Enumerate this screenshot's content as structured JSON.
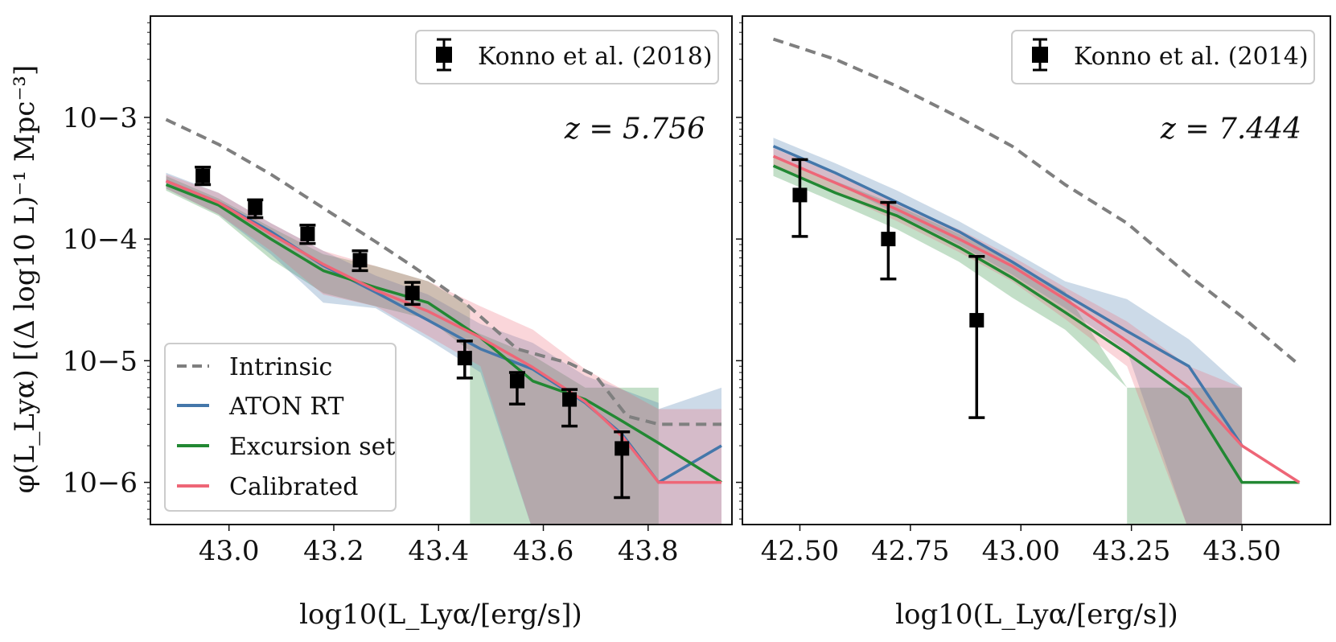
{
  "figure": {
    "ylabel": "φ(L_Lyα) [(Δ log10 L)⁻¹ Mpc⁻³]",
    "colors": {
      "intrinsic": "#7f7f7f",
      "aton": "#4477aa",
      "excursion": "#228833",
      "calibrated": "#ee6677",
      "observed": "#000000"
    }
  },
  "chart_data": [
    {
      "type": "line",
      "title": "",
      "xlabel": "log10(L_Lyα/[erg/s])",
      "ylabel": "φ(L_Lyα) [(Δ log10 L)⁻¹ Mpc⁻³]",
      "yscale": "log",
      "xlim": [
        42.85,
        43.96
      ],
      "ylim": [
        4.5e-07,
        0.0068
      ],
      "xticks": [
        43.0,
        43.2,
        43.4,
        43.6,
        43.8
      ],
      "xtick_labels": [
        "43.0",
        "43.2",
        "43.4",
        "43.6",
        "43.8"
      ],
      "yticks": [
        1e-06,
        1e-05,
        0.0001,
        0.001
      ],
      "ytick_labels": [
        "10−6",
        "10−5",
        "10−4",
        "10−3"
      ],
      "annotation": "z = 5.756",
      "legend_observed": "Konno et al. (2018)",
      "legend_position": "top-right",
      "series": [
        {
          "name": "Intrinsic",
          "style": "dashed",
          "color_key": "intrinsic",
          "x": [
            42.88,
            42.98,
            43.08,
            43.18,
            43.28,
            43.35,
            43.45,
            43.55,
            43.65,
            43.7,
            43.76,
            43.82,
            43.94
          ],
          "y": [
            0.00096,
            0.0006,
            0.00034,
            0.00018,
            9.5e-05,
            6e-05,
            3e-05,
            1.25e-05,
            9.5e-06,
            7.5e-06,
            3.5e-06,
            3e-06,
            3e-06
          ]
        },
        {
          "name": "ATON RT",
          "style": "solid",
          "color_key": "aton",
          "x": [
            42.88,
            42.98,
            43.08,
            43.18,
            43.28,
            43.38,
            43.48,
            43.58,
            43.68,
            43.75,
            43.82,
            43.94
          ],
          "y": [
            0.0003,
            0.0002,
            0.000115,
            6.05e-05,
            3.65e-05,
            2.15e-05,
            1.25e-05,
            8.5e-06,
            4.5e-06,
            2.5e-06,
            1e-06,
            2e-06
          ]
        },
        {
          "name": "Excursion set",
          "style": "solid",
          "color_key": "excursion",
          "x": [
            42.88,
            42.98,
            43.08,
            43.18,
            43.28,
            43.38,
            43.48,
            43.58,
            43.68,
            43.75,
            43.82,
            43.94
          ],
          "y": [
            0.00028,
            0.00019,
            0.0001,
            5.5e-05,
            4e-05,
            3e-05,
            1.55e-05,
            6.8e-06,
            4.8e-06,
            3.2e-06,
            2.1e-06,
            1e-06
          ]
        },
        {
          "name": "Calibrated",
          "style": "solid",
          "color_key": "calibrated",
          "x": [
            42.88,
            42.98,
            43.08,
            43.18,
            43.28,
            43.38,
            43.48,
            43.58,
            43.68,
            43.75,
            43.82,
            43.94
          ],
          "y": [
            0.0003,
            0.0002,
            0.00011,
            6.2e-05,
            3.8e-05,
            2.55e-05,
            1.55e-05,
            8.8e-06,
            4.6e-06,
            2.4e-06,
            1e-06,
            1e-06
          ]
        }
      ],
      "bands": [
        {
          "name": "Excursion set band",
          "color_key": "excursion",
          "x": [
            42.88,
            42.98,
            43.08,
            43.18,
            43.28,
            43.38,
            43.46,
            43.46,
            43.58,
            43.68,
            43.82,
            43.82
          ],
          "upper": [
            0.00033,
            0.000215,
            0.000125,
            7.5e-05,
            6e-05,
            4.5e-05,
            2.8e-05,
            1.8e-05,
            1.1e-05,
            6e-06,
            6e-06,
            6e-06
          ],
          "lower": [
            0.00025,
            0.000155,
            6.8e-05,
            3.6e-05,
            2.8e-05,
            2.2e-05,
            1.2e-05,
            4e-07,
            4e-07,
            4e-07,
            4e-07,
            4e-07
          ]
        },
        {
          "name": "ATON RT band",
          "color_key": "aton",
          "x": [
            42.88,
            42.98,
            43.08,
            43.18,
            43.28,
            43.38,
            43.48,
            43.58,
            43.68,
            43.82,
            43.82,
            43.94
          ],
          "upper": [
            0.00035,
            0.00024,
            0.000135,
            8e-05,
            5e-05,
            3.5e-05,
            2e-05,
            1.4e-05,
            7.5e-06,
            4.5e-06,
            4e-06,
            6e-06
          ],
          "lower": [
            0.00026,
            0.00016,
            7.5e-05,
            3e-05,
            2.7e-05,
            1.5e-05,
            8e-06,
            4e-07,
            4e-07,
            4e-07,
            4e-07,
            4e-07
          ]
        },
        {
          "name": "Calibrated band",
          "color_key": "calibrated",
          "x": [
            42.88,
            42.98,
            43.08,
            43.18,
            43.28,
            43.38,
            43.48,
            43.58,
            43.68,
            43.82,
            43.82,
            43.94
          ],
          "upper": [
            0.00034,
            0.00024,
            0.000135,
            8e-05,
            6e-05,
            4.5e-05,
            2.8e-05,
            1.8e-05,
            8.5e-06,
            4e-06,
            4e-06,
            4e-06
          ],
          "lower": [
            0.00026,
            0.00016,
            8e-05,
            3.5e-05,
            2.8e-05,
            1.6e-05,
            9e-06,
            4e-07,
            4e-07,
            4e-07,
            4e-07,
            4e-07
          ]
        }
      ],
      "observations": [
        {
          "x": 42.95,
          "y": 0.00033,
          "lo": 0.00028,
          "hi": 0.00039
        },
        {
          "x": 43.05,
          "y": 0.00018,
          "lo": 0.00015,
          "hi": 0.00021
        },
        {
          "x": 43.15,
          "y": 0.00011,
          "lo": 9.2e-05,
          "hi": 0.00013
        },
        {
          "x": 43.25,
          "y": 6.7e-05,
          "lo": 5.5e-05,
          "hi": 8e-05
        },
        {
          "x": 43.35,
          "y": 3.6e-05,
          "lo": 2.9e-05,
          "hi": 4.4e-05
        },
        {
          "x": 43.45,
          "y": 1.05e-05,
          "lo": 7.2e-06,
          "hi": 1.45e-05
        },
        {
          "x": 43.55,
          "y": 6.8e-06,
          "lo": 4.4e-06,
          "hi": 8e-06
        },
        {
          "x": 43.65,
          "y": 4.8e-06,
          "lo": 2.9e-06,
          "hi": 5.8e-06
        },
        {
          "x": 43.75,
          "y": 1.9e-06,
          "lo": 7.5e-07,
          "hi": 2.6e-06
        }
      ],
      "legend_entries": [
        "Intrinsic",
        "ATON RT",
        "Excursion set",
        "Calibrated"
      ],
      "legend_lines_position": "bottom-left"
    },
    {
      "type": "line",
      "title": "",
      "xlabel": "log10(L_Lyα/[erg/s])",
      "yscale": "log",
      "xlim": [
        42.37,
        43.7
      ],
      "ylim": [
        4.5e-07,
        0.0068
      ],
      "xticks": [
        42.5,
        42.75,
        43.0,
        43.25,
        43.5
      ],
      "xtick_labels": [
        "42.50",
        "42.75",
        "43.00",
        "43.25",
        "43.50"
      ],
      "yticks": [
        1e-06,
        1e-05,
        0.0001,
        0.001
      ],
      "ytick_labels": [],
      "annotation": "z = 7.444",
      "legend_observed": "Konno et al. (2014)",
      "legend_position": "top-right",
      "series": [
        {
          "name": "Intrinsic",
          "style": "dashed",
          "color_key": "intrinsic",
          "x": [
            42.44,
            42.58,
            42.72,
            42.86,
            42.98,
            43.1,
            43.24,
            43.38,
            43.5,
            43.63
          ],
          "y": [
            0.0044,
            0.003,
            0.0018,
            0.001,
            0.00058,
            0.00028,
            0.000135,
            5e-05,
            2.3e-05,
            9.2e-06
          ]
        },
        {
          "name": "ATON RT",
          "style": "solid",
          "color_key": "aton",
          "x": [
            42.44,
            42.58,
            42.72,
            42.86,
            42.98,
            43.1,
            43.24,
            43.38,
            43.5
          ],
          "y": [
            0.00058,
            0.00035,
            0.0002,
            0.000115,
            6.5e-05,
            3.5e-05,
            1.75e-05,
            9e-06,
            2e-06
          ]
        },
        {
          "name": "Excursion set",
          "style": "solid",
          "color_key": "excursion",
          "x": [
            42.44,
            42.58,
            42.72,
            42.86,
            42.98,
            43.1,
            43.24,
            43.38,
            43.5,
            43.63
          ],
          "y": [
            0.0004,
            0.00024,
            0.000155,
            8.55e-05,
            4.8e-05,
            2.5e-05,
            1.15e-05,
            5e-06,
            1e-06,
            1e-06
          ]
        },
        {
          "name": "Calibrated",
          "style": "solid",
          "color_key": "calibrated",
          "x": [
            42.44,
            42.58,
            42.72,
            42.86,
            42.98,
            43.1,
            43.24,
            43.38,
            43.5,
            43.63
          ],
          "y": [
            0.00048,
            0.00029,
            0.000175,
            0.0001,
            6e-05,
            3.2e-05,
            1.45e-05,
            6e-06,
            2e-06,
            1e-06
          ]
        }
      ],
      "bands": [
        {
          "name": "Excursion set band",
          "color_key": "excursion",
          "x": [
            42.44,
            42.58,
            42.72,
            42.86,
            42.98,
            43.1,
            43.24,
            43.24,
            43.38,
            43.5
          ],
          "upper": [
            0.00048,
            0.0003,
            0.00019,
            0.00011,
            6.5e-05,
            3.7e-05,
            6e-06,
            6e-06,
            6e-06,
            6e-06
          ],
          "lower": [
            0.00033,
            0.0002,
            0.00012,
            6.5e-05,
            3.3e-05,
            1.8e-05,
            6e-06,
            4e-07,
            4e-07,
            4e-07
          ]
        },
        {
          "name": "ATON RT band",
          "color_key": "aton",
          "x": [
            42.44,
            42.58,
            42.72,
            42.86,
            42.98,
            43.1,
            43.24,
            43.38,
            43.5
          ],
          "upper": [
            0.00068,
            0.00042,
            0.00025,
            0.00014,
            8e-05,
            4.5e-05,
            3.2e-05,
            1.5e-05,
            6e-06
          ],
          "lower": [
            0.00049,
            0.00029,
            0.00016,
            9e-05,
            5.1e-05,
            2.7e-05,
            1.2e-05,
            4e-07,
            4e-07
          ]
        },
        {
          "name": "Calibrated band",
          "color_key": "calibrated",
          "x": [
            42.44,
            42.58,
            42.72,
            42.86,
            42.98,
            43.1,
            43.24,
            43.38,
            43.5
          ],
          "upper": [
            0.00056,
            0.00034,
            0.0002,
            0.00012,
            7.2e-05,
            4e-05,
            2.1e-05,
            9e-06,
            6e-06
          ],
          "lower": [
            0.0004,
            0.00024,
            0.00014,
            7.8e-05,
            4.5e-05,
            2.2e-05,
            9e-06,
            4e-07,
            4e-07
          ]
        }
      ],
      "observations": [
        {
          "x": 42.5,
          "y": 0.00023,
          "lo": 0.000105,
          "hi": 0.00045
        },
        {
          "x": 42.7,
          "y": 0.0001,
          "lo": 4.7e-05,
          "hi": 0.0002
        },
        {
          "x": 42.9,
          "y": 2.15e-05,
          "lo": 3.4e-06,
          "hi": 7.2e-05
        }
      ],
      "legend_entries": [],
      "legend_lines_position": "none"
    }
  ]
}
